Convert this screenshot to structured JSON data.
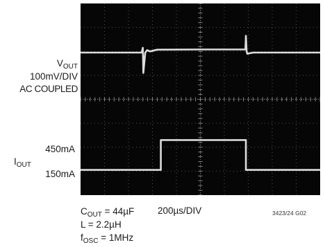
{
  "labels": {
    "vout_main": "V",
    "vout_sub": "OUT",
    "vout_scale": "100mV/DIV",
    "vout_coupling": "AC COUPLED",
    "iout_high": "450mA",
    "iout_main": "I",
    "iout_sub": "OUT",
    "iout_low": "150mA",
    "cout": "C",
    "cout_sub": "OUT",
    "cout_val": " = 44µF",
    "timebase": "200µs/DIV",
    "inductor": "L = 2.2µH",
    "fosc": "f",
    "fosc_sub": "OSC",
    "fosc_val": " = 1MHz",
    "figure_id": "3423/24 G02"
  },
  "colors": {
    "screen": "#060606",
    "trace": "#e8e8e8",
    "grid": "#555555"
  },
  "chart_data": {
    "type": "line",
    "x_unit": "div",
    "x_divisions": 10,
    "y_divisions": 8,
    "series": [
      {
        "name": "VOUT",
        "x": [
          0,
          2.55,
          2.6,
          2.62,
          2.7,
          2.78,
          2.9,
          3.2,
          5.0,
          6.88,
          6.9,
          6.93,
          6.96,
          7.2,
          10
        ],
        "y_div": [
          5.95,
          5.95,
          6.15,
          5.1,
          5.95,
          6.05,
          6.0,
          6.07,
          6.08,
          6.08,
          6.65,
          6.0,
          5.9,
          5.95,
          5.95
        ]
      },
      {
        "name": "IOUT",
        "x": [
          0,
          3.35,
          3.35,
          6.9,
          6.9,
          10
        ],
        "y_div": [
          1.05,
          1.05,
          2.3,
          2.3,
          1.05,
          1.05
        ],
        "levels_mA": {
          "low": 150,
          "high": 450
        }
      }
    ]
  }
}
